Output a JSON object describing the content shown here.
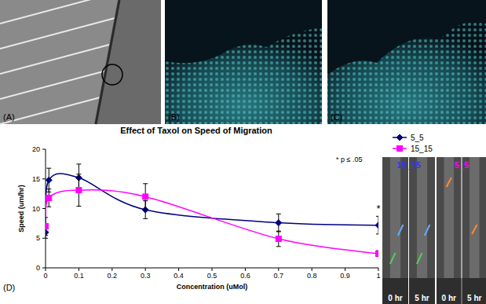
{
  "chart_data": {
    "type": "line",
    "title": "Effect of Taxol on Speed of Migration",
    "xlabel": "Concentration (uMol)",
    "ylabel": "Speed (um/hr)",
    "x": [
      0,
      0.01,
      0.1,
      0.3,
      0.7,
      1
    ],
    "series": [
      {
        "name": "5_5",
        "color": "#000080",
        "marker": "diamond",
        "line_style": "smooth",
        "values": [
          6,
          14.8,
          15.2,
          9.8,
          7.6,
          7.2
        ],
        "errors": [
          1,
          2,
          2.3,
          1.5,
          1.5,
          1.5
        ]
      },
      {
        "name": "15_15",
        "color": "#ff00ff",
        "marker": "square",
        "line_style": "smooth",
        "values": [
          7,
          11.8,
          13.1,
          12,
          4.9,
          2.4
        ],
        "errors": [
          1.5,
          1.5,
          2.7,
          2.2,
          1.3,
          0.5
        ]
      }
    ],
    "xlim": [
      0,
      1
    ],
    "xticks": [
      0,
      0.1,
      0.2,
      0.3,
      0.4,
      0.5,
      0.6,
      0.7,
      0.8,
      0.9,
      1
    ],
    "ylim": [
      0,
      20
    ],
    "yticks": [
      0,
      5,
      10,
      15,
      20
    ],
    "grid": false,
    "legend": "right",
    "annotations": [
      "* p ≤ .05",
      "*"
    ]
  },
  "panel_label": "(D)",
  "panels": [
    {
      "label": "(A)"
    },
    {
      "label": "(B)"
    },
    {
      "label": "(C)"
    }
  ],
  "timelapse": [
    {
      "label": "15_15",
      "color": "#3333ff",
      "frames": [
        "0 hr",
        "5 hr"
      ]
    },
    {
      "label": "5_5",
      "color": "#ff00ff",
      "frames": [
        "0 hr",
        "5 hr"
      ]
    }
  ]
}
